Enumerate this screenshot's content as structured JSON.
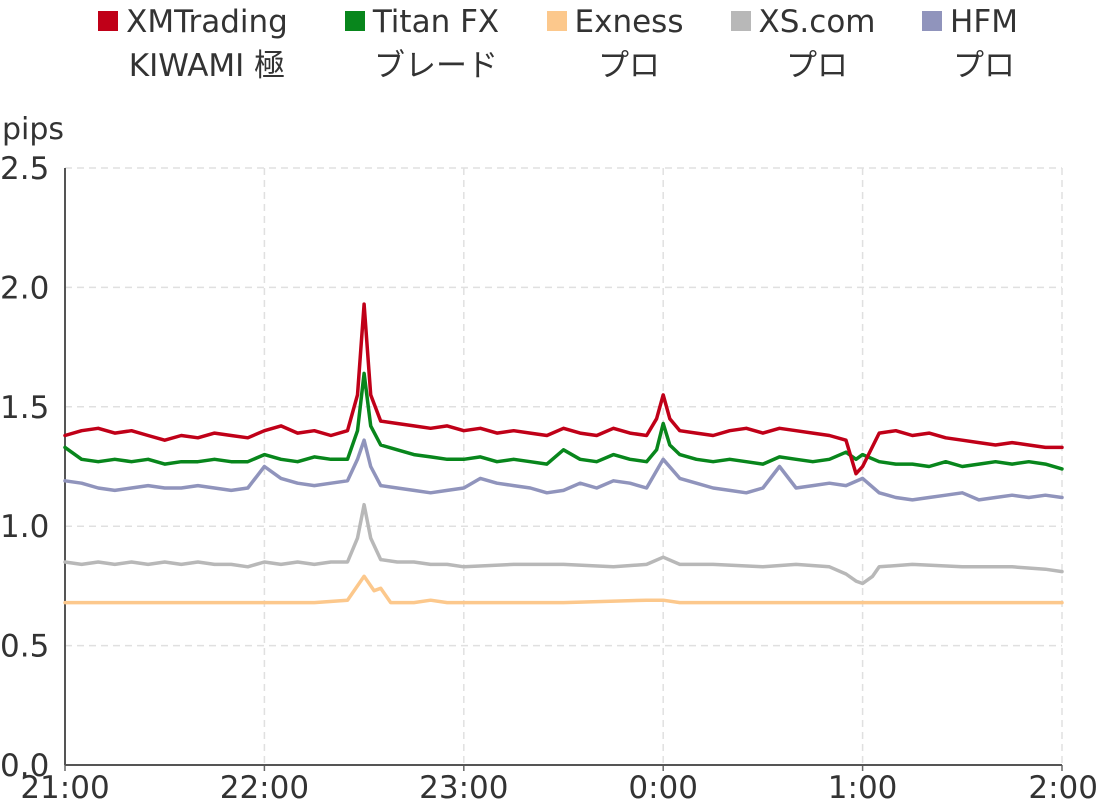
{
  "chart_data": {
    "type": "line",
    "ylabel": "pips",
    "ylim": [
      0,
      2.5
    ],
    "yticks": [
      "0.0",
      "0.5",
      "1.0",
      "1.5",
      "2.0",
      "2.5"
    ],
    "xlim": [
      "21:00",
      "2:00"
    ],
    "xticks": [
      "21:00",
      "22:00",
      "23:00",
      "0:00",
      "1:00",
      "2:00"
    ],
    "grid": true,
    "legend_position": "top",
    "series": [
      {
        "name": "XMTrading",
        "name_line2": "KIWAMI 極",
        "color": "#c00018",
        "points": [
          [
            "21:00",
            1.38
          ],
          [
            "21:05",
            1.4
          ],
          [
            "21:10",
            1.41
          ],
          [
            "21:15",
            1.39
          ],
          [
            "21:20",
            1.4
          ],
          [
            "21:25",
            1.38
          ],
          [
            "21:30",
            1.36
          ],
          [
            "21:35",
            1.38
          ],
          [
            "21:40",
            1.37
          ],
          [
            "21:45",
            1.39
          ],
          [
            "21:50",
            1.38
          ],
          [
            "21:55",
            1.37
          ],
          [
            "22:00",
            1.4
          ],
          [
            "22:05",
            1.42
          ],
          [
            "22:10",
            1.39
          ],
          [
            "22:15",
            1.4
          ],
          [
            "22:20",
            1.38
          ],
          [
            "22:25",
            1.4
          ],
          [
            "22:28",
            1.55
          ],
          [
            "22:30",
            1.93
          ],
          [
            "22:32",
            1.55
          ],
          [
            "22:35",
            1.44
          ],
          [
            "22:40",
            1.43
          ],
          [
            "22:45",
            1.42
          ],
          [
            "22:50",
            1.41
          ],
          [
            "22:55",
            1.42
          ],
          [
            "23:00",
            1.4
          ],
          [
            "23:05",
            1.41
          ],
          [
            "23:10",
            1.39
          ],
          [
            "23:15",
            1.4
          ],
          [
            "23:20",
            1.39
          ],
          [
            "23:25",
            1.38
          ],
          [
            "23:30",
            1.41
          ],
          [
            "23:35",
            1.39
          ],
          [
            "23:40",
            1.38
          ],
          [
            "23:45",
            1.41
          ],
          [
            "23:50",
            1.39
          ],
          [
            "23:55",
            1.38
          ],
          [
            "23:58",
            1.45
          ],
          [
            "0:00",
            1.55
          ],
          [
            "0:02",
            1.45
          ],
          [
            "0:05",
            1.4
          ],
          [
            "0:10",
            1.39
          ],
          [
            "0:15",
            1.38
          ],
          [
            "0:20",
            1.4
          ],
          [
            "0:25",
            1.41
          ],
          [
            "0:30",
            1.39
          ],
          [
            "0:35",
            1.41
          ],
          [
            "0:40",
            1.4
          ],
          [
            "0:45",
            1.39
          ],
          [
            "0:50",
            1.38
          ],
          [
            "0:55",
            1.36
          ],
          [
            "0:58",
            1.22
          ],
          [
            "1:00",
            1.25
          ],
          [
            "1:05",
            1.39
          ],
          [
            "1:10",
            1.4
          ],
          [
            "1:15",
            1.38
          ],
          [
            "1:20",
            1.39
          ],
          [
            "1:25",
            1.37
          ],
          [
            "1:30",
            1.36
          ],
          [
            "1:35",
            1.35
          ],
          [
            "1:40",
            1.34
          ],
          [
            "1:45",
            1.35
          ],
          [
            "1:50",
            1.34
          ],
          [
            "1:55",
            1.33
          ],
          [
            "2:00",
            1.33
          ]
        ]
      },
      {
        "name": "Titan FX",
        "name_line2": "ブレード",
        "color": "#08861c",
        "points": [
          [
            "21:00",
            1.33
          ],
          [
            "21:05",
            1.28
          ],
          [
            "21:10",
            1.27
          ],
          [
            "21:15",
            1.28
          ],
          [
            "21:20",
            1.27
          ],
          [
            "21:25",
            1.28
          ],
          [
            "21:30",
            1.26
          ],
          [
            "21:35",
            1.27
          ],
          [
            "21:40",
            1.27
          ],
          [
            "21:45",
            1.28
          ],
          [
            "21:50",
            1.27
          ],
          [
            "21:55",
            1.27
          ],
          [
            "22:00",
            1.3
          ],
          [
            "22:05",
            1.28
          ],
          [
            "22:10",
            1.27
          ],
          [
            "22:15",
            1.29
          ],
          [
            "22:20",
            1.28
          ],
          [
            "22:25",
            1.28
          ],
          [
            "22:28",
            1.4
          ],
          [
            "22:30",
            1.64
          ],
          [
            "22:32",
            1.42
          ],
          [
            "22:35",
            1.34
          ],
          [
            "22:40",
            1.32
          ],
          [
            "22:45",
            1.3
          ],
          [
            "22:50",
            1.29
          ],
          [
            "22:55",
            1.28
          ],
          [
            "23:00",
            1.28
          ],
          [
            "23:05",
            1.29
          ],
          [
            "23:10",
            1.27
          ],
          [
            "23:15",
            1.28
          ],
          [
            "23:20",
            1.27
          ],
          [
            "23:25",
            1.26
          ],
          [
            "23:30",
            1.32
          ],
          [
            "23:35",
            1.28
          ],
          [
            "23:40",
            1.27
          ],
          [
            "23:45",
            1.3
          ],
          [
            "23:50",
            1.28
          ],
          [
            "23:55",
            1.27
          ],
          [
            "23:58",
            1.32
          ],
          [
            "0:00",
            1.43
          ],
          [
            "0:02",
            1.34
          ],
          [
            "0:05",
            1.3
          ],
          [
            "0:10",
            1.28
          ],
          [
            "0:15",
            1.27
          ],
          [
            "0:20",
            1.28
          ],
          [
            "0:25",
            1.27
          ],
          [
            "0:30",
            1.26
          ],
          [
            "0:35",
            1.29
          ],
          [
            "0:40",
            1.28
          ],
          [
            "0:45",
            1.27
          ],
          [
            "0:50",
            1.28
          ],
          [
            "0:55",
            1.31
          ],
          [
            "0:58",
            1.28
          ],
          [
            "1:00",
            1.3
          ],
          [
            "1:05",
            1.27
          ],
          [
            "1:10",
            1.26
          ],
          [
            "1:15",
            1.26
          ],
          [
            "1:20",
            1.25
          ],
          [
            "1:25",
            1.27
          ],
          [
            "1:30",
            1.25
          ],
          [
            "1:35",
            1.26
          ],
          [
            "1:40",
            1.27
          ],
          [
            "1:45",
            1.26
          ],
          [
            "1:50",
            1.27
          ],
          [
            "1:55",
            1.26
          ],
          [
            "2:00",
            1.24
          ]
        ]
      },
      {
        "name": "Exness",
        "name_line2": "プロ",
        "color": "#fcc88c",
        "points": [
          [
            "21:00",
            0.68
          ],
          [
            "21:15",
            0.68
          ],
          [
            "21:30",
            0.68
          ],
          [
            "21:45",
            0.68
          ],
          [
            "22:00",
            0.68
          ],
          [
            "22:15",
            0.68
          ],
          [
            "22:25",
            0.69
          ],
          [
            "22:30",
            0.79
          ],
          [
            "22:33",
            0.73
          ],
          [
            "22:35",
            0.74
          ],
          [
            "22:38",
            0.68
          ],
          [
            "22:45",
            0.68
          ],
          [
            "22:50",
            0.69
          ],
          [
            "22:55",
            0.68
          ],
          [
            "23:00",
            0.68
          ],
          [
            "23:30",
            0.68
          ],
          [
            "23:55",
            0.69
          ],
          [
            "0:00",
            0.69
          ],
          [
            "0:05",
            0.68
          ],
          [
            "0:30",
            0.68
          ],
          [
            "1:00",
            0.68
          ],
          [
            "1:30",
            0.68
          ],
          [
            "2:00",
            0.68
          ]
        ]
      },
      {
        "name": "XS.com",
        "name_line2": "プロ",
        "color": "#b8b8b8",
        "points": [
          [
            "21:00",
            0.85
          ],
          [
            "21:05",
            0.84
          ],
          [
            "21:10",
            0.85
          ],
          [
            "21:15",
            0.84
          ],
          [
            "21:20",
            0.85
          ],
          [
            "21:25",
            0.84
          ],
          [
            "21:30",
            0.85
          ],
          [
            "21:35",
            0.84
          ],
          [
            "21:40",
            0.85
          ],
          [
            "21:45",
            0.84
          ],
          [
            "21:50",
            0.84
          ],
          [
            "21:55",
            0.83
          ],
          [
            "22:00",
            0.85
          ],
          [
            "22:05",
            0.84
          ],
          [
            "22:10",
            0.85
          ],
          [
            "22:15",
            0.84
          ],
          [
            "22:20",
            0.85
          ],
          [
            "22:25",
            0.85
          ],
          [
            "22:28",
            0.95
          ],
          [
            "22:30",
            1.09
          ],
          [
            "22:32",
            0.95
          ],
          [
            "22:35",
            0.86
          ],
          [
            "22:40",
            0.85
          ],
          [
            "22:45",
            0.85
          ],
          [
            "22:50",
            0.84
          ],
          [
            "22:55",
            0.84
          ],
          [
            "23:00",
            0.83
          ],
          [
            "23:15",
            0.84
          ],
          [
            "23:30",
            0.84
          ],
          [
            "23:45",
            0.83
          ],
          [
            "23:55",
            0.84
          ],
          [
            "0:00",
            0.87
          ],
          [
            "0:05",
            0.84
          ],
          [
            "0:15",
            0.84
          ],
          [
            "0:30",
            0.83
          ],
          [
            "0:40",
            0.84
          ],
          [
            "0:50",
            0.83
          ],
          [
            "0:55",
            0.8
          ],
          [
            "0:58",
            0.77
          ],
          [
            "1:00",
            0.76
          ],
          [
            "1:03",
            0.79
          ],
          [
            "1:05",
            0.83
          ],
          [
            "1:15",
            0.84
          ],
          [
            "1:30",
            0.83
          ],
          [
            "1:45",
            0.83
          ],
          [
            "1:55",
            0.82
          ],
          [
            "2:00",
            0.81
          ]
        ]
      },
      {
        "name": "HFM",
        "name_line2": "プロ",
        "color": "#9094bc",
        "points": [
          [
            "21:00",
            1.19
          ],
          [
            "21:05",
            1.18
          ],
          [
            "21:10",
            1.16
          ],
          [
            "21:15",
            1.15
          ],
          [
            "21:20",
            1.16
          ],
          [
            "21:25",
            1.17
          ],
          [
            "21:30",
            1.16
          ],
          [
            "21:35",
            1.16
          ],
          [
            "21:40",
            1.17
          ],
          [
            "21:45",
            1.16
          ],
          [
            "21:50",
            1.15
          ],
          [
            "21:55",
            1.16
          ],
          [
            "22:00",
            1.25
          ],
          [
            "22:05",
            1.2
          ],
          [
            "22:10",
            1.18
          ],
          [
            "22:15",
            1.17
          ],
          [
            "22:20",
            1.18
          ],
          [
            "22:25",
            1.19
          ],
          [
            "22:28",
            1.28
          ],
          [
            "22:30",
            1.36
          ],
          [
            "22:32",
            1.25
          ],
          [
            "22:35",
            1.17
          ],
          [
            "22:40",
            1.16
          ],
          [
            "22:45",
            1.15
          ],
          [
            "22:50",
            1.14
          ],
          [
            "22:55",
            1.15
          ],
          [
            "23:00",
            1.16
          ],
          [
            "23:05",
            1.2
          ],
          [
            "23:10",
            1.18
          ],
          [
            "23:15",
            1.17
          ],
          [
            "23:20",
            1.16
          ],
          [
            "23:25",
            1.14
          ],
          [
            "23:30",
            1.15
          ],
          [
            "23:35",
            1.18
          ],
          [
            "23:40",
            1.16
          ],
          [
            "23:45",
            1.19
          ],
          [
            "23:50",
            1.18
          ],
          [
            "23:55",
            1.16
          ],
          [
            "0:00",
            1.28
          ],
          [
            "0:05",
            1.2
          ],
          [
            "0:10",
            1.18
          ],
          [
            "0:15",
            1.16
          ],
          [
            "0:20",
            1.15
          ],
          [
            "0:25",
            1.14
          ],
          [
            "0:30",
            1.16
          ],
          [
            "0:35",
            1.25
          ],
          [
            "0:40",
            1.16
          ],
          [
            "0:45",
            1.17
          ],
          [
            "0:50",
            1.18
          ],
          [
            "0:55",
            1.17
          ],
          [
            "1:00",
            1.2
          ],
          [
            "1:05",
            1.14
          ],
          [
            "1:10",
            1.12
          ],
          [
            "1:15",
            1.11
          ],
          [
            "1:20",
            1.12
          ],
          [
            "1:25",
            1.13
          ],
          [
            "1:30",
            1.14
          ],
          [
            "1:35",
            1.11
          ],
          [
            "1:40",
            1.12
          ],
          [
            "1:45",
            1.13
          ],
          [
            "1:50",
            1.12
          ],
          [
            "1:55",
            1.13
          ],
          [
            "2:00",
            1.12
          ]
        ]
      }
    ]
  }
}
